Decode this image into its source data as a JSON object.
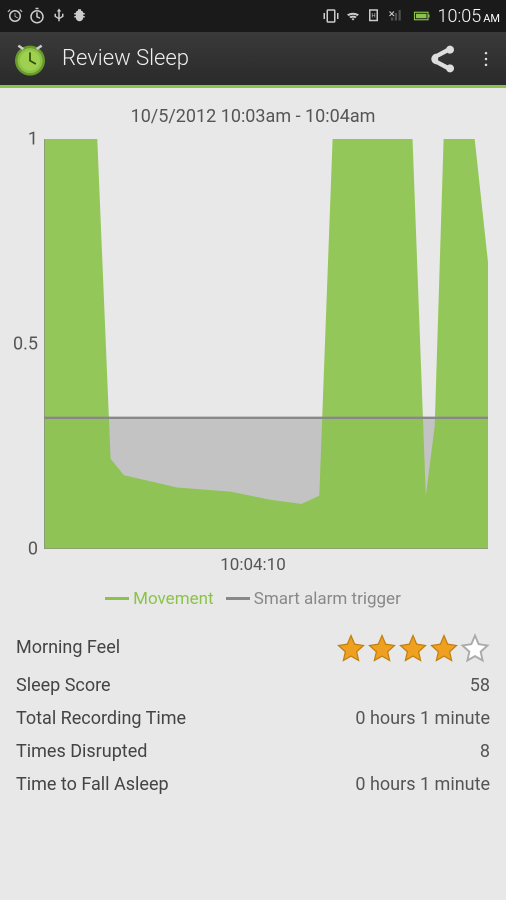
{
  "status": {
    "time": "10:05",
    "ampm": "AM"
  },
  "app": {
    "title": "Review Sleep"
  },
  "chart": {
    "title": "10/5/2012 10:03am - 10:04am",
    "ylabels": [
      "1",
      "0.5",
      "0"
    ],
    "xlabel": "10:04:10",
    "movement_color": "#8bc34a",
    "trigger_color": "#888888",
    "trigger_level": 0.32,
    "points": [
      [
        0,
        1.0
      ],
      [
        0.12,
        1.0
      ],
      [
        0.15,
        0.22
      ],
      [
        0.18,
        0.18
      ],
      [
        0.3,
        0.15
      ],
      [
        0.42,
        0.14
      ],
      [
        0.51,
        0.12
      ],
      [
        0.58,
        0.11
      ],
      [
        0.62,
        0.13
      ],
      [
        0.65,
        1.0
      ],
      [
        0.83,
        1.0
      ],
      [
        0.86,
        0.13
      ],
      [
        0.88,
        0.3
      ],
      [
        0.9,
        1.0
      ],
      [
        0.97,
        1.0
      ],
      [
        1.0,
        0.7
      ]
    ],
    "legend": {
      "movement": "Movement",
      "trigger": "Smart alarm trigger"
    }
  },
  "stats": {
    "rows": [
      {
        "label": "Morning Feel",
        "type": "stars",
        "value": 4,
        "max": 5
      },
      {
        "label": "Sleep Score",
        "type": "text",
        "value": "58"
      },
      {
        "label": "Total Recording Time",
        "type": "text",
        "value": "0 hours 1 minute"
      },
      {
        "label": "Times Disrupted",
        "type": "text",
        "value": "8"
      },
      {
        "label": "Time to Fall Asleep",
        "type": "text",
        "value": "0 hours 1 minute"
      }
    ]
  }
}
